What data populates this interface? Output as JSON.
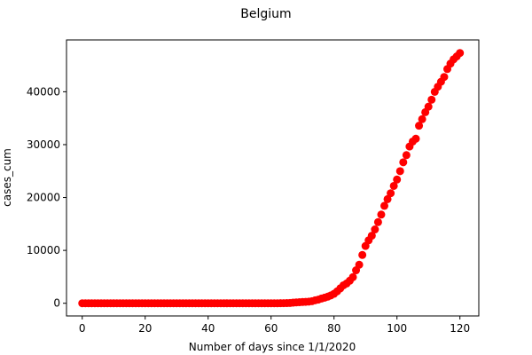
{
  "chart_data": {
    "type": "scatter",
    "title": "Belgium",
    "xlabel": "Number of days since 1/1/2020",
    "ylabel": "cases_cum",
    "xlim": [
      -5,
      126
    ],
    "ylim": [
      -2400,
      49800
    ],
    "x_ticks": [
      0,
      20,
      40,
      60,
      80,
      100,
      120
    ],
    "y_ticks": [
      0,
      10000,
      20000,
      30000,
      40000
    ],
    "marker_color": "#ff0000",
    "grid": false,
    "legend": "none",
    "series": [
      {
        "points": [
          [
            0,
            0
          ],
          [
            1,
            0
          ],
          [
            2,
            0
          ],
          [
            3,
            0
          ],
          [
            4,
            0
          ],
          [
            5,
            0
          ],
          [
            6,
            0
          ],
          [
            7,
            0
          ],
          [
            8,
            0
          ],
          [
            9,
            0
          ],
          [
            10,
            0
          ],
          [
            11,
            0
          ],
          [
            12,
            0
          ],
          [
            13,
            0
          ],
          [
            14,
            0
          ],
          [
            15,
            0
          ],
          [
            16,
            0
          ],
          [
            17,
            0
          ],
          [
            18,
            0
          ],
          [
            19,
            0
          ],
          [
            20,
            0
          ],
          [
            21,
            0
          ],
          [
            22,
            0
          ],
          [
            23,
            0
          ],
          [
            24,
            0
          ],
          [
            25,
            0
          ],
          [
            26,
            0
          ],
          [
            27,
            0
          ],
          [
            28,
            0
          ],
          [
            29,
            0
          ],
          [
            30,
            0
          ],
          [
            31,
            0
          ],
          [
            32,
            0
          ],
          [
            33,
            1
          ],
          [
            34,
            1
          ],
          [
            35,
            1
          ],
          [
            36,
            1
          ],
          [
            37,
            1
          ],
          [
            38,
            1
          ],
          [
            39,
            1
          ],
          [
            40,
            1
          ],
          [
            41,
            1
          ],
          [
            42,
            1
          ],
          [
            43,
            1
          ],
          [
            44,
            1
          ],
          [
            45,
            1
          ],
          [
            46,
            1
          ],
          [
            47,
            1
          ],
          [
            48,
            1
          ],
          [
            49,
            1
          ],
          [
            50,
            1
          ],
          [
            51,
            1
          ],
          [
            52,
            1
          ],
          [
            53,
            1
          ],
          [
            54,
            1
          ],
          [
            55,
            1
          ],
          [
            56,
            1
          ],
          [
            57,
            1
          ],
          [
            58,
            1
          ],
          [
            59,
            1
          ],
          [
            60,
            1
          ],
          [
            61,
            1
          ],
          [
            62,
            2
          ],
          [
            63,
            8
          ],
          [
            64,
            13
          ],
          [
            65,
            23
          ],
          [
            66,
            50
          ],
          [
            67,
            109
          ],
          [
            68,
            169
          ],
          [
            69,
            200
          ],
          [
            70,
            239
          ],
          [
            71,
            267
          ],
          [
            72,
            314
          ],
          [
            73,
            399
          ],
          [
            74,
            559
          ],
          [
            75,
            689
          ],
          [
            76,
            886
          ],
          [
            77,
            1058
          ],
          [
            78,
            1243
          ],
          [
            79,
            1486
          ],
          [
            80,
            1795
          ],
          [
            81,
            2257
          ],
          [
            82,
            2815
          ],
          [
            83,
            3401
          ],
          [
            84,
            3743
          ],
          [
            85,
            4269
          ],
          [
            86,
            4937
          ],
          [
            87,
            6235
          ],
          [
            88,
            7284
          ],
          [
            89,
            9134
          ],
          [
            90,
            10836
          ],
          [
            91,
            11899
          ],
          [
            92,
            12775
          ],
          [
            93,
            13964
          ],
          [
            94,
            15348
          ],
          [
            95,
            16770
          ],
          [
            96,
            18431
          ],
          [
            97,
            19691
          ],
          [
            98,
            20814
          ],
          [
            99,
            22194
          ],
          [
            100,
            23403
          ],
          [
            101,
            24983
          ],
          [
            102,
            26667
          ],
          [
            103,
            28018
          ],
          [
            104,
            29647
          ],
          [
            105,
            30589
          ],
          [
            106,
            31119
          ],
          [
            107,
            33573
          ],
          [
            108,
            34809
          ],
          [
            109,
            36138
          ],
          [
            110,
            37183
          ],
          [
            111,
            38496
          ],
          [
            112,
            39983
          ],
          [
            113,
            40956
          ],
          [
            114,
            41889
          ],
          [
            115,
            42797
          ],
          [
            116,
            44293
          ],
          [
            117,
            45325
          ],
          [
            118,
            46134
          ],
          [
            119,
            46687
          ],
          [
            120,
            47334
          ]
        ]
      }
    ]
  }
}
